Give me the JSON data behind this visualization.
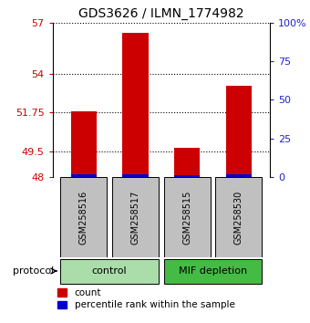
{
  "title": "GDS3626 / ILMN_1774982",
  "samples": [
    "GSM258516",
    "GSM258517",
    "GSM258515",
    "GSM258530"
  ],
  "red_values": [
    51.8,
    56.4,
    49.7,
    53.3
  ],
  "blue_values": [
    48.18,
    48.18,
    48.12,
    48.18
  ],
  "baseline": 48,
  "y_left_ticks": [
    48,
    49.5,
    51.75,
    54,
    57
  ],
  "y_left_tick_labels": [
    "48",
    "49.5",
    "51.75",
    "54",
    "57"
  ],
  "y_right_ticks": [
    0,
    25,
    50,
    75,
    100
  ],
  "y_right_tick_labels": [
    "0",
    "25",
    "50",
    "75",
    "100%"
  ],
  "ylim": [
    48,
    57
  ],
  "groups": [
    {
      "label": "control",
      "color": "#aaddaa",
      "samples": [
        0,
        1
      ]
    },
    {
      "label": "MIF depletion",
      "color": "#44bb44",
      "samples": [
        2,
        3
      ]
    }
  ],
  "bar_width": 0.5,
  "red_color": "#CC0000",
  "blue_color": "#0000CC",
  "bg_sample_box": "#C0C0C0",
  "legend_items": [
    "count",
    "percentile rank within the sample"
  ],
  "protocol_label": "protocol",
  "title_fontsize": 10,
  "tick_fontsize": 8,
  "sample_fontsize": 7,
  "legend_fontsize": 7.5
}
